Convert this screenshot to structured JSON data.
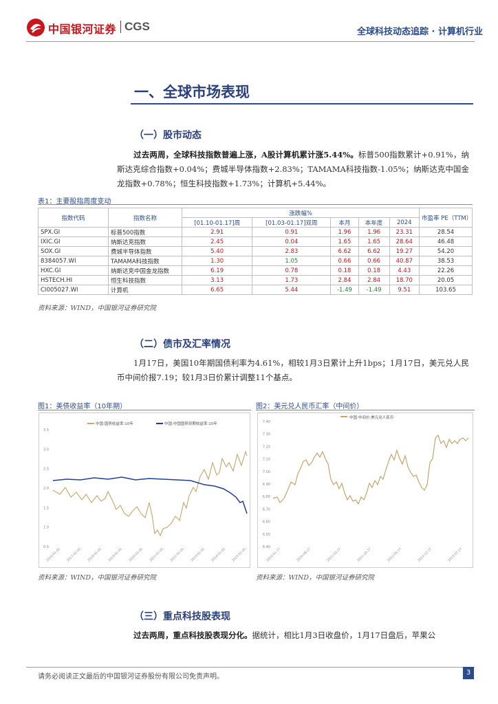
{
  "header": {
    "logo_cn": "中国银河证券",
    "logo_en": "CGS",
    "right_title": "全球科技动态追踪 · 计算机行业"
  },
  "section1": {
    "title": "一、全球市场表现"
  },
  "sub1": {
    "title": "（一）股市动态",
    "para_bold": "过去两周，全球科技指数普遍上涨，A股计算机累计涨5.44%。",
    "para_rest": "标普500指数累计+0.91%，纳斯达克综合指数+0.04%；费城半导体指数+2.83%；TAMAMA科技指数-1.05%；纳斯达克中国金龙指数+0.78%；恒生科技指数+1.73%；计算机+5.44%。"
  },
  "table": {
    "caption": "表1：主要股指周度变动",
    "group_header": "涨跌幅%",
    "headers": [
      "指数代码",
      "指数名称",
      "[01.10-01.17]周",
      "[01.03-01.17]双周",
      "本月",
      "本年度",
      "2024",
      "市盈率 PE（TTM）"
    ],
    "rows": [
      {
        "code": "SPX.GI",
        "name": "标普500指数",
        "c1": "2.91",
        "c2": "0.91",
        "c3": "1.96",
        "c4": "1.96",
        "c5": "23.31",
        "pe": "28.54",
        "s1": "r",
        "s2": "r",
        "s3": "r",
        "s4": "r",
        "s5": "r"
      },
      {
        "code": "IXIC.GI",
        "name": "纳斯达克指数",
        "c1": "2.45",
        "c2": "0.04",
        "c3": "1.65",
        "c4": "1.65",
        "c5": "28.64",
        "pe": "46.48",
        "s1": "r",
        "s2": "r",
        "s3": "r",
        "s4": "r",
        "s5": "r"
      },
      {
        "code": "SOX.GI",
        "name": "费城半导体指数",
        "c1": "5.40",
        "c2": "2.83",
        "c3": "6.62",
        "c4": "6.62",
        "c5": "19.27",
        "pe": "54.20",
        "s1": "r",
        "s2": "r",
        "s3": "r",
        "s4": "r",
        "s5": "r"
      },
      {
        "code": "8384057.WI",
        "name": "TAMAMA科技指数",
        "c1": "1.30",
        "c2": "1.05",
        "c3": "0.66",
        "c4": "0.66",
        "c5": "40.87",
        "pe": "38.53",
        "s1": "r",
        "s2": "g",
        "s3": "r",
        "s4": "r",
        "s5": "r"
      },
      {
        "code": "HXC.GI",
        "name": "纳斯达克中国金龙指数",
        "c1": "6.19",
        "c2": "0.78",
        "c3": "0.18",
        "c4": "0.18",
        "c5": "4.43",
        "pe": "22.26",
        "s1": "r",
        "s2": "r",
        "s3": "r",
        "s4": "r",
        "s5": "r"
      },
      {
        "code": "HSTECH.HI",
        "name": "恒生科技指数",
        "c1": "3.13",
        "c2": "1.73",
        "c3": "2.84",
        "c4": "2.84",
        "c5": "18.70",
        "pe": "20.05",
        "s1": "r",
        "s2": "r",
        "s3": "r",
        "s4": "r",
        "s5": "r"
      },
      {
        "code": "CI005027.WI",
        "name": "计算机",
        "c1": "6.65",
        "c2": "5.44",
        "c3": "-1.49",
        "c4": "-1.49",
        "c5": "9.51",
        "pe": "103.65",
        "s1": "r",
        "s2": "r",
        "s3": "g",
        "s4": "g",
        "s5": "r"
      }
    ],
    "source": "资料来源：WIND，中国银河证券研究院"
  },
  "sub2": {
    "title": "（二）债市及汇率情况",
    "para": "1月17日，美国10年期国债利率为4.61%，相较1月3日累计上升1bps；1月17日，美元兑人民币中间价报7.19；较1月3日价累计调整11个基点。"
  },
  "fig1": {
    "caption": "图1：美债收益率（10年期）",
    "legend_a": "中国:国债收益率:10年",
    "legend_b": "中国:中国国债到期收益率:10年",
    "yticks": [
      "3.5",
      "3.0",
      "2.5",
      "2.0",
      "1.5",
      "1.0",
      "0.5"
    ],
    "source": "资料来源：WIND，中国银河证券研究院"
  },
  "fig2": {
    "caption": "图2：美元兑人民币汇率（中间价）",
    "legend": "中国:中间价:美元兑人民币",
    "yticks": [
      "7.40",
      "7.30",
      "7.20",
      "7.10",
      "7.00",
      "6.90",
      "6.80",
      "6.70",
      "6.60",
      "6.50",
      "6.40"
    ],
    "source": "资料来源：WIND，中国银河证券研究院"
  },
  "sub3": {
    "title": "（三）重点科技股表现",
    "para_bold": "过去两周，重点科技股表现分化。",
    "para_rest": "据统计，相比1月3日收盘价，1月17日盘后，苹果公"
  },
  "footer": {
    "text": "请务必阅读正文最后的中国银河证券股份有限公司免责声明。",
    "page": "3"
  },
  "colors": {
    "brand_red": "#c8161d",
    "navy": "#2a4c8c",
    "tan": "#c9a46c",
    "blue_line": "#1f3f9a"
  }
}
